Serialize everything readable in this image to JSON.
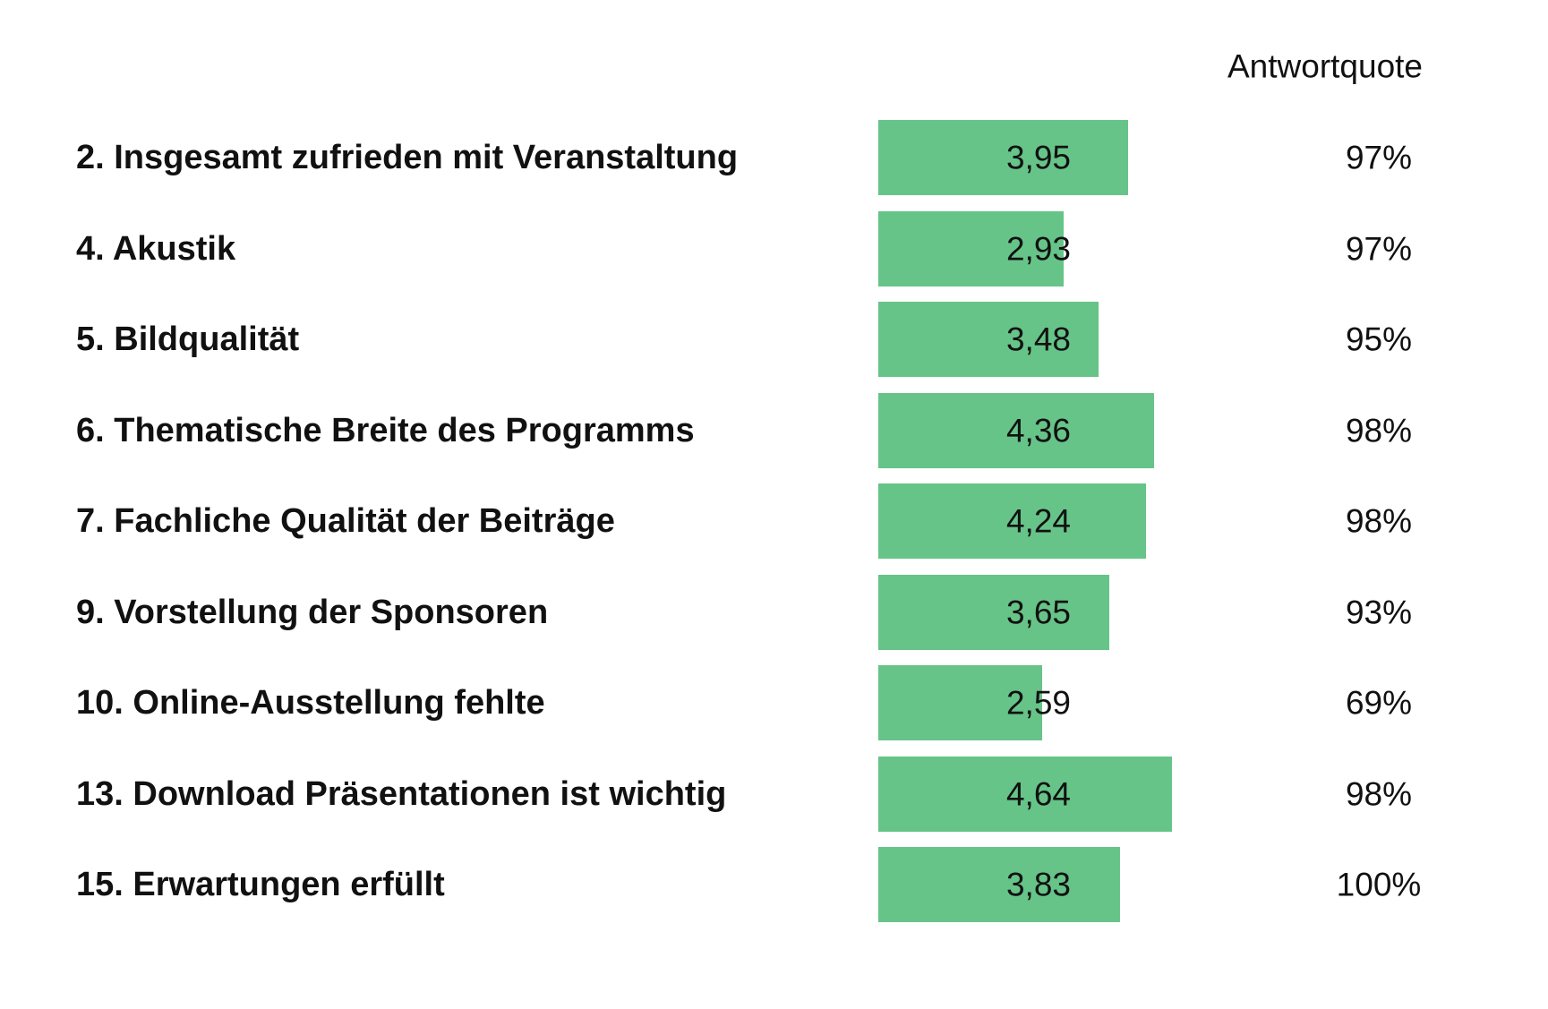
{
  "chart_data": {
    "type": "bar",
    "orientation": "horizontal",
    "title": "",
    "xlabel": "",
    "ylabel": "",
    "bar_color": "#66c488",
    "xlim": [
      0,
      5
    ],
    "grid": false,
    "column_header": "Antwortquote",
    "categories": [
      "2. Insgesamt zufrieden mit Veranstaltung",
      "4. Akustik",
      "5. Bildqualität",
      "6. Thematische Breite des Programms",
      "7. Fachliche Qualität der Beiträge",
      "9. Vorstellung der Sponsoren",
      "10. Online-Ausstellung fehlte",
      "13. Download Präsentationen ist wichtig",
      "15. Erwartungen erfüllt"
    ],
    "values": [
      3.95,
      2.93,
      3.48,
      4.36,
      4.24,
      3.65,
      2.59,
      4.64,
      3.83
    ],
    "value_labels": [
      "3,95",
      "2,93",
      "3,48",
      "4,36",
      "4,24",
      "3,65",
      "2,59",
      "4,64",
      "3,83"
    ],
    "response_rates": [
      "97%",
      "97%",
      "95%",
      "98%",
      "98%",
      "93%",
      "69%",
      "98%",
      "100%"
    ]
  }
}
